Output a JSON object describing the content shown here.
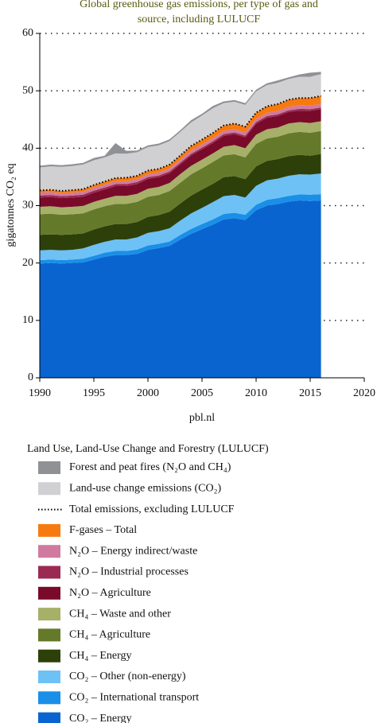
{
  "chart_data": {
    "type": "stacked-area",
    "title": [
      "Global greenhouse gas emissions, per type of gas and",
      "source, including LULUCF"
    ],
    "y_label": "gigatonnes CO₂ eq",
    "x_label": "pbl.nl",
    "legend_title": "Land Use, Land-Use Change and Forestry (LULUCF)",
    "x": [
      1990,
      1991,
      1992,
      1993,
      1994,
      1995,
      1996,
      1997,
      1998,
      1999,
      2000,
      2001,
      2002,
      2003,
      2004,
      2005,
      2006,
      2007,
      2008,
      2009,
      2010,
      2011,
      2012,
      2013,
      2014,
      2015,
      2016
    ],
    "xlim": [
      1990,
      2020
    ],
    "xticks": [
      1990,
      1995,
      2000,
      2005,
      2010,
      2015,
      2020
    ],
    "ylim": [
      0,
      60
    ],
    "yticks": [
      0,
      10,
      20,
      30,
      40,
      50,
      60
    ],
    "grid": true,
    "series": [
      {
        "name": "CO₂ – Energy",
        "color": "#0a64d0",
        "values": [
          19.9,
          20.0,
          19.9,
          20.0,
          20.1,
          20.6,
          21.1,
          21.4,
          21.4,
          21.6,
          22.3,
          22.6,
          23.0,
          24.1,
          25.1,
          25.9,
          26.7,
          27.6,
          27.8,
          27.5,
          29.2,
          30.0,
          30.3,
          30.7,
          30.9,
          30.8,
          30.9
        ]
      },
      {
        "name": "CO₂ – International transport",
        "color": "#1a8fe8",
        "values": [
          0.6,
          0.6,
          0.6,
          0.6,
          0.65,
          0.65,
          0.7,
          0.7,
          0.7,
          0.75,
          0.75,
          0.75,
          0.75,
          0.8,
          0.85,
          0.9,
          0.9,
          0.95,
          0.95,
          0.9,
          0.95,
          1.0,
          1.0,
          1.0,
          1.05,
          1.1,
          1.1
        ]
      },
      {
        "name": "CO₂ – Other (non-energy)",
        "color": "#6ec1f5",
        "values": [
          1.7,
          1.7,
          1.7,
          1.7,
          1.8,
          1.9,
          1.9,
          2.0,
          2.0,
          2.1,
          2.2,
          2.2,
          2.3,
          2.5,
          2.7,
          2.8,
          3.0,
          3.1,
          3.1,
          3.0,
          3.3,
          3.4,
          3.4,
          3.5,
          3.5,
          3.5,
          3.6
        ]
      },
      {
        "name": "CH₄ – Energy",
        "color": "#2d400a",
        "values": [
          2.7,
          2.7,
          2.7,
          2.7,
          2.6,
          2.7,
          2.7,
          2.7,
          2.7,
          2.7,
          2.8,
          2.8,
          2.9,
          3.0,
          3.1,
          3.2,
          3.2,
          3.3,
          3.3,
          3.2,
          3.4,
          3.4,
          3.4,
          3.4,
          3.4,
          3.3,
          3.4
        ]
      },
      {
        "name": "CH₄ – Agriculture",
        "color": "#647a2a",
        "values": [
          3.6,
          3.6,
          3.5,
          3.5,
          3.5,
          3.5,
          3.5,
          3.5,
          3.5,
          3.5,
          3.5,
          3.5,
          3.6,
          3.6,
          3.7,
          3.7,
          3.8,
          3.8,
          3.8,
          3.8,
          3.9,
          3.9,
          3.9,
          4.0,
          4.0,
          4.0,
          4.0
        ]
      },
      {
        "name": "CH₄ – Waste and other",
        "color": "#a6b068",
        "values": [
          1.3,
          1.3,
          1.3,
          1.3,
          1.3,
          1.3,
          1.3,
          1.4,
          1.4,
          1.4,
          1.4,
          1.4,
          1.4,
          1.5,
          1.5,
          1.5,
          1.5,
          1.5,
          1.6,
          1.6,
          1.6,
          1.6,
          1.6,
          1.7,
          1.7,
          1.7,
          1.7
        ]
      },
      {
        "name": "N₂O – Agriculture",
        "color": "#7a0a2a",
        "values": [
          1.6,
          1.6,
          1.6,
          1.6,
          1.6,
          1.6,
          1.6,
          1.7,
          1.7,
          1.7,
          1.7,
          1.7,
          1.7,
          1.7,
          1.8,
          1.8,
          1.8,
          1.9,
          1.9,
          1.9,
          1.9,
          2.0,
          2.0,
          2.0,
          2.0,
          2.1,
          2.1
        ]
      },
      {
        "name": "N₂O – Industrial processes",
        "color": "#9a2a52",
        "values": [
          0.35,
          0.35,
          0.35,
          0.35,
          0.35,
          0.35,
          0.35,
          0.35,
          0.35,
          0.35,
          0.3,
          0.3,
          0.3,
          0.3,
          0.3,
          0.3,
          0.3,
          0.3,
          0.3,
          0.3,
          0.3,
          0.3,
          0.3,
          0.3,
          0.3,
          0.3,
          0.3
        ]
      },
      {
        "name": "N₂O – Energy indirect/waste",
        "color": "#d07aa0",
        "values": [
          0.5,
          0.5,
          0.5,
          0.5,
          0.5,
          0.5,
          0.5,
          0.5,
          0.5,
          0.5,
          0.5,
          0.5,
          0.5,
          0.5,
          0.55,
          0.55,
          0.55,
          0.55,
          0.55,
          0.55,
          0.55,
          0.55,
          0.6,
          0.6,
          0.6,
          0.6,
          0.6
        ]
      },
      {
        "name": "F-gases – Total",
        "color": "#f77a10",
        "values": [
          0.4,
          0.4,
          0.4,
          0.45,
          0.45,
          0.5,
          0.55,
          0.55,
          0.6,
          0.6,
          0.65,
          0.65,
          0.7,
          0.75,
          0.8,
          0.85,
          0.9,
          0.95,
          1.0,
          1.0,
          1.1,
          1.15,
          1.2,
          1.25,
          1.3,
          1.35,
          1.4
        ]
      },
      {
        "name": "Total emissions, excluding LULUCF",
        "color": "#000000",
        "kind": "line",
        "values": [
          32.65,
          32.75,
          32.55,
          32.7,
          32.85,
          33.6,
          34.2,
          34.8,
          34.85,
          35.2,
          36.1,
          36.4,
          37.15,
          38.75,
          40.4,
          41.5,
          42.65,
          43.95,
          44.3,
          43.75,
          46.2,
          47.3,
          47.7,
          48.45,
          48.75,
          48.75,
          49.1
        ]
      },
      {
        "name": "Land-use change emissions (CO₂)",
        "color": "#d0d0d2",
        "values": [
          4.0,
          4.1,
          4.2,
          4.2,
          4.3,
          4.3,
          4.2,
          4.3,
          4.2,
          4.1,
          4.1,
          4.1,
          4.1,
          4.1,
          4.1,
          4.2,
          4.3,
          3.9,
          3.8,
          3.8,
          3.7,
          3.7,
          3.7,
          3.6,
          3.7,
          3.7,
          3.8
        ]
      },
      {
        "name": "Forest and peat fires (N₂O and CH₄)",
        "color": "#8f9195",
        "values": [
          0.3,
          0.3,
          0.3,
          0.3,
          0.3,
          0.4,
          0.3,
          1.8,
          0.5,
          0.3,
          0.3,
          0.3,
          0.3,
          0.3,
          0.4,
          0.3,
          0.4,
          0.3,
          0.3,
          0.3,
          0.3,
          0.3,
          0.4,
          0.3,
          0.4,
          0.7,
          0.4
        ]
      }
    ]
  }
}
